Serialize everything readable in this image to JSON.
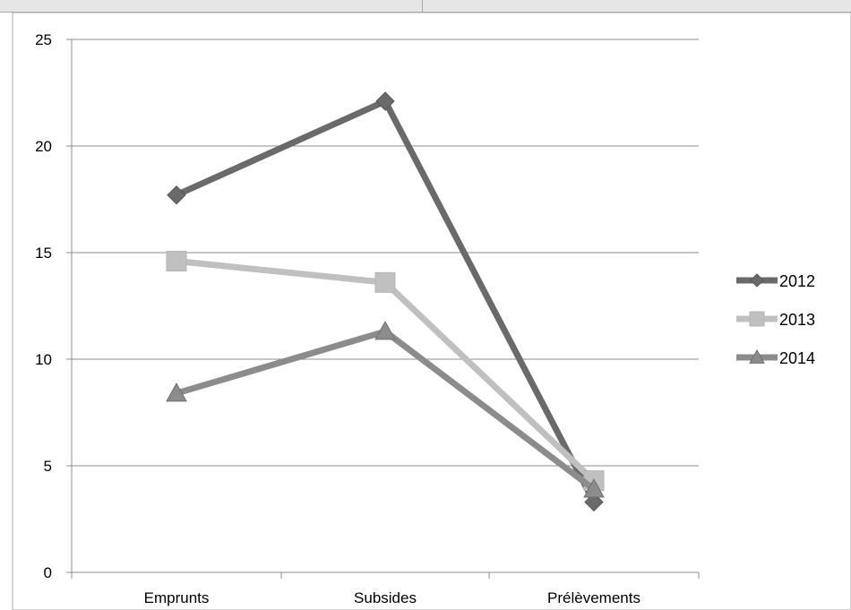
{
  "chart_data": {
    "type": "line",
    "categories": [
      "Emprunts",
      "Subsides",
      "Prélèvements"
    ],
    "ylim": [
      0,
      25
    ],
    "yticks": [
      0,
      5,
      10,
      15,
      20,
      25
    ],
    "grid": true,
    "legend_position": "right",
    "series": [
      {
        "name": "2012",
        "values": [
          17.7,
          22.1,
          3.3
        ],
        "color": "#6a6a6a",
        "marker": "diamond"
      },
      {
        "name": "2013",
        "values": [
          14.6,
          13.6,
          4.3
        ],
        "color": "#c0c0c0",
        "marker": "square"
      },
      {
        "name": "2014",
        "values": [
          8.4,
          11.3,
          3.9
        ],
        "color": "#8c8c8c",
        "marker": "triangle"
      }
    ],
    "title": "",
    "xlabel": "",
    "ylabel": ""
  }
}
